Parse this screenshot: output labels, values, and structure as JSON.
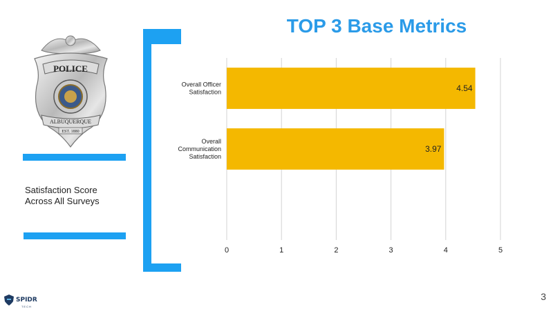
{
  "header": {
    "title": "TOP 3 Base Metrics"
  },
  "badge": {
    "top_text": "POLICE",
    "bottom_text": "ALBUQUERQUE",
    "est_text": "EST. 1880"
  },
  "side_label": {
    "line1": "Satisfaction Score",
    "line2": "Across All Surveys"
  },
  "colors": {
    "accent": "#1da1f2",
    "bar": "#f4b800",
    "title": "#2b9be8"
  },
  "footer": {
    "page_number": "3",
    "logo_name": "SPIDR",
    "logo_sub": "TECH"
  },
  "chart_data": {
    "type": "bar",
    "orientation": "horizontal",
    "categories": [
      [
        "Overall Officer",
        "Satisfaction"
      ],
      [
        "Overall",
        "Communication",
        "Satisfaction"
      ],
      []
    ],
    "values": [
      4.54,
      3.97,
      null
    ],
    "data_labels": [
      "4.54",
      "3.97",
      ""
    ],
    "xlim": [
      0,
      5
    ],
    "ticks": [
      "0",
      "1",
      "2",
      "3",
      "4",
      "5"
    ],
    "grid": true,
    "bar_color": "#f4b800"
  }
}
